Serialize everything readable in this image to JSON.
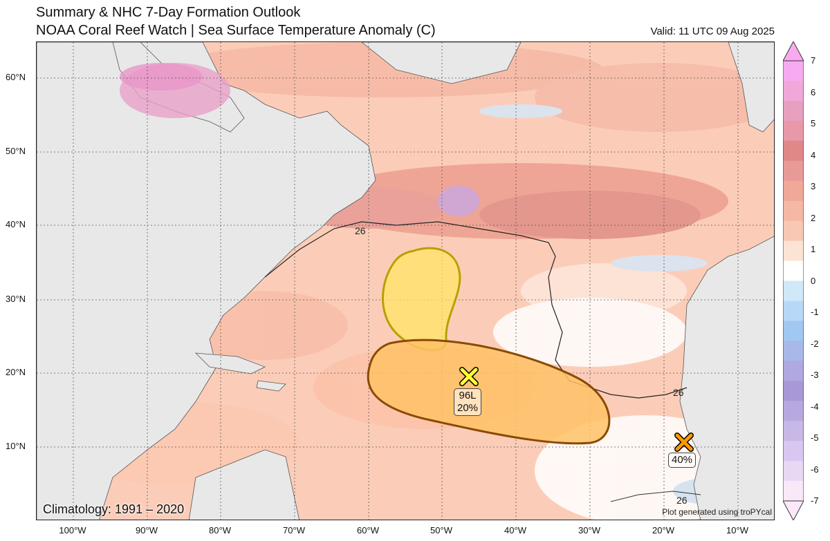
{
  "header": {
    "title_line1": "Summary & NHC 7-Day Formation Outlook",
    "title_line2": "NOAA Coral Reef Watch | Sea Surface Temperature Anomaly (C)",
    "valid_text": "Valid: 11 UTC 09 Aug 2025"
  },
  "map": {
    "lat_labels": [
      "60°N",
      "50°N",
      "40°N",
      "30°N",
      "20°N",
      "10°N"
    ],
    "lon_labels": [
      "100°W",
      "90°W",
      "80°W",
      "70°W",
      "60°W",
      "50°W",
      "40°W",
      "30°W",
      "20°W",
      "10°W"
    ],
    "isotherm_labels": [
      "26",
      "26",
      "26"
    ],
    "footer_left": "Climatology: 1991 – 2020",
    "footer_right": "Plot generated using troPYcal"
  },
  "outlooks": [
    {
      "id": "96L",
      "name": "96L",
      "chance": "20%",
      "marker_color": "#ffff33"
    },
    {
      "id": "east",
      "name": "",
      "chance": "40%",
      "marker_color": "#ff9900"
    }
  ],
  "colorbar": {
    "ticks": [
      "7",
      "6",
      "5",
      "4",
      "3",
      "2",
      "1",
      "0",
      "-1",
      "-2",
      "-3",
      "-4",
      "-5",
      "-6",
      "-7"
    ],
    "colors": [
      "#f8aaf0",
      "#f0a8d8",
      "#e8a0c0",
      "#e898a8",
      "#e08888",
      "#e89a98",
      "#f0a898",
      "#f4b8a4",
      "#f8c8b4",
      "#fce4d4",
      "#ffffff",
      "#d0e8f8",
      "#b8d8f8",
      "#a0c8f0",
      "#a8b8e8",
      "#b0a8e0",
      "#a898d8",
      "#b8a8e0",
      "#c8b8e8",
      "#d8c8f0",
      "#e8d8f4",
      "#f8e8f8"
    ],
    "land_color": "#e8e8e8",
    "ocean_color": "#fbcbb4"
  }
}
